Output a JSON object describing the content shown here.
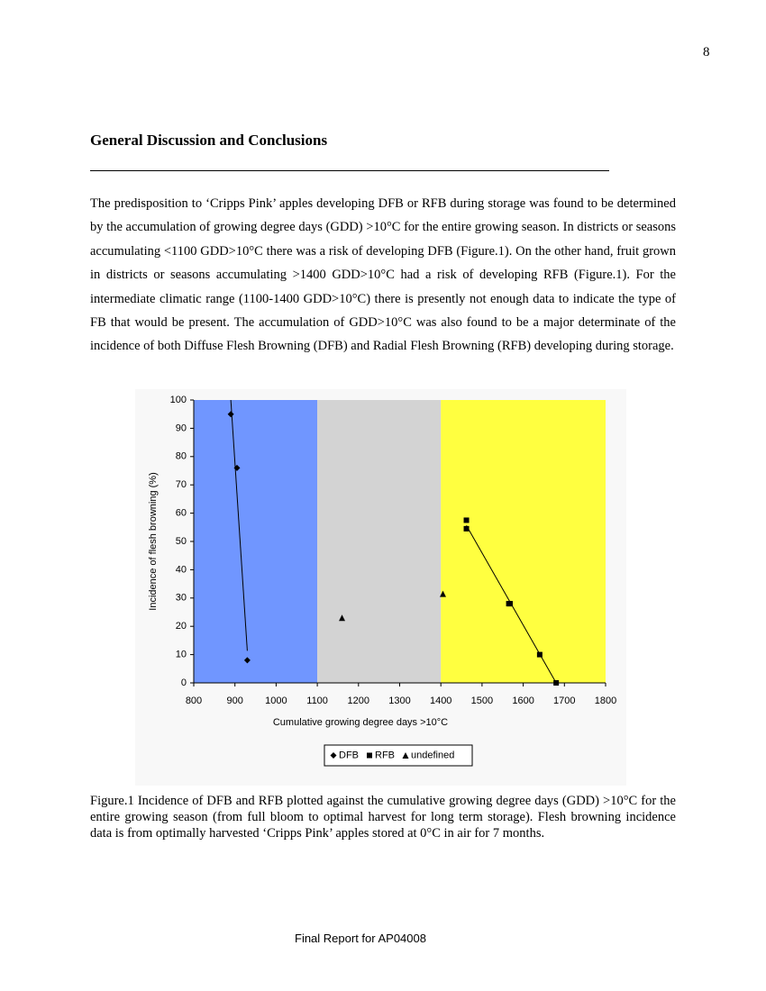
{
  "page_number": "8",
  "heading": "General Discussion and Conclusions",
  "paragraph": "The predisposition to ‘Cripps Pink’ apples developing DFB or RFB during storage was found to be determined by the accumulation of growing degree days (GDD) >10°C for the entire growing season. In districts or seasons accumulating <1100 GDD>10°C there was a risk of developing DFB (Figure.1). On the other hand, fruit grown in districts or seasons accumulating >1400 GDD>10°C had a risk of developing RFB (Figure.1). For the intermediate climatic range (1100-1400 GDD>10°C) there is presently not enough data to indicate the type of FB that would be present. The accumulation of GDD>10°C was also found to be a major determinate of the incidence of both Diffuse Flesh Browning (DFB) and Radial Flesh Browning (RFB) developing during storage.",
  "chart_data": {
    "type": "scatter",
    "x_label": "Cumulative growing degree days >10°C",
    "y_label": "Incidence of flesh browning (%)",
    "xlim": [
      800,
      1800
    ],
    "xticks": [
      800,
      900,
      1000,
      1100,
      1200,
      1300,
      1400,
      1500,
      1600,
      1700,
      1800
    ],
    "ylim": [
      0,
      100
    ],
    "yticks": [
      0,
      10,
      20,
      30,
      40,
      50,
      60,
      70,
      80,
      90,
      100
    ],
    "bands": [
      {
        "from": 800,
        "to": 1100,
        "color": "#7096ff"
      },
      {
        "from": 1100,
        "to": 1400,
        "color": "#d3d3d3"
      },
      {
        "from": 1400,
        "to": 1800,
        "color": "#ffff40"
      }
    ],
    "legend": "bottom",
    "series": [
      {
        "name": "DFB",
        "marker": "diamond",
        "color": "#000000",
        "trendline": true,
        "x": [
          890,
          905,
          930
        ],
        "values": [
          95,
          76,
          8
        ]
      },
      {
        "name": "RFB",
        "marker": "square",
        "color": "#000000",
        "trendline": true,
        "x": [
          1462,
          1462,
          1565,
          1568,
          1640,
          1680
        ],
        "values": [
          57.5,
          54.5,
          28,
          28,
          10,
          0
        ]
      },
      {
        "name": "undefined",
        "marker": "triangle",
        "color": "#000000",
        "trendline": false,
        "x": [
          1160,
          1405
        ],
        "values": [
          23,
          31.5
        ]
      }
    ]
  },
  "caption": "Figure.1 Incidence of DFB and RFB plotted against the cumulative growing degree days (GDD) >10°C for the entire growing season (from full bloom to optimal harvest for long term storage). Flesh browning incidence data is from optimally harvested ‘Cripps Pink’ apples stored at 0°C in air for 7 months.",
  "footer": "Final Report for AP04008"
}
